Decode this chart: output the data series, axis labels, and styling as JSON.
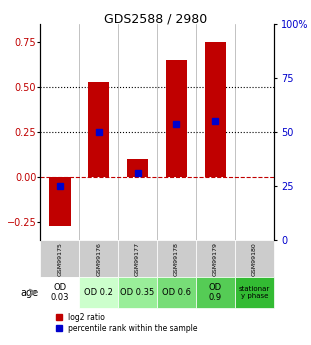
{
  "title": "GDS2588 / 2980",
  "samples": [
    "GSM99175",
    "GSM99176",
    "GSM99177",
    "GSM99178",
    "GSM99179",
    "GSM99180"
  ],
  "log2_ratio": [
    -0.27,
    0.53,
    0.1,
    0.65,
    0.75,
    0.0
  ],
  "percentile_rank": [
    0.25,
    0.5,
    0.31,
    0.54,
    0.55,
    null
  ],
  "bar_color": "#c00000",
  "dot_color": "#0000cc",
  "left_ylim": [
    -0.35,
    0.85
  ],
  "right_ylim": [
    0,
    100
  ],
  "left_yticks": [
    -0.25,
    0.0,
    0.25,
    0.5,
    0.75
  ],
  "right_yticks": [
    0,
    25,
    50,
    75,
    100
  ],
  "right_yticklabels": [
    "0",
    "25",
    "50",
    "75",
    "100%"
  ],
  "hline_dotted": [
    0.25,
    0.5
  ],
  "hline_dashed": 0.0,
  "age_labels": [
    "OD\n0.03",
    "OD 0.2",
    "OD 0.35",
    "OD 0.6",
    "OD\n0.9",
    "stationar\ny phase"
  ],
  "age_colors": [
    "#ffffff",
    "#ccffcc",
    "#99ee99",
    "#77dd77",
    "#55cc55",
    "#33bb33"
  ],
  "gsm_bg_color": "#cccccc",
  "legend_log2": "log2 ratio",
  "legend_pct": "percentile rank within the sample",
  "bar_width": 0.55
}
